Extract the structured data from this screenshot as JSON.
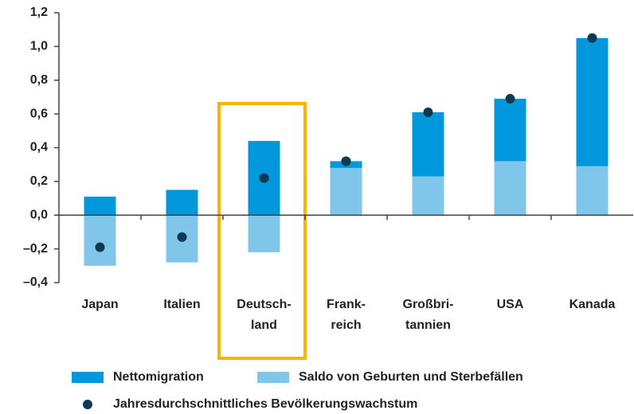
{
  "chart_data": {
    "type": "bar",
    "categories": [
      [
        "Japan"
      ],
      [
        "Italien"
      ],
      [
        "Deutsch-",
        "land"
      ],
      [
        "Frank-",
        "reich"
      ],
      [
        "Großbri-",
        "tannien"
      ],
      [
        "USA"
      ],
      [
        "Kanada"
      ]
    ],
    "series": [
      {
        "name": "Saldo von Geburten und Sterbefällen",
        "color": "#80c6ea",
        "values": [
          -0.3,
          -0.28,
          -0.22,
          0.28,
          0.23,
          0.32,
          0.29
        ]
      },
      {
        "name": "Nettomigration",
        "color": "#0097dc",
        "values": [
          0.11,
          0.15,
          0.44,
          0.04,
          0.38,
          0.37,
          0.76
        ]
      }
    ],
    "dots": {
      "name": "Jahresdurchschnittliches Bevölkerungswachstum",
      "color": "#0b3a52",
      "values": [
        -0.19,
        -0.13,
        0.22,
        0.32,
        0.61,
        0.69,
        1.05
      ]
    },
    "ylim": [
      -0.4,
      1.2
    ],
    "yticks": [
      {
        "value": -0.4,
        "label": "–0,4"
      },
      {
        "value": -0.2,
        "label": "–0,2"
      },
      {
        "value": 0,
        "label": "0,0"
      },
      {
        "value": 0.2,
        "label": "0,2"
      },
      {
        "value": 0.4,
        "label": "0,4"
      },
      {
        "value": 0.6,
        "label": "0,6"
      },
      {
        "value": 0.8,
        "label": "0,8"
      },
      {
        "value": 1.0,
        "label": "1,0"
      },
      {
        "value": 1.2,
        "label": "1,2"
      }
    ]
  }
}
